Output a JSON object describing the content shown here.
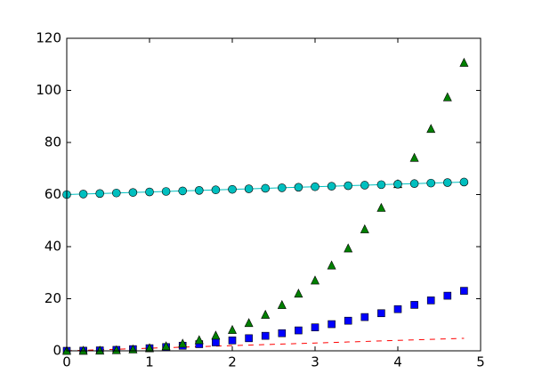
{
  "chart_data": {
    "type": "line",
    "x": [
      0,
      0.2,
      0.4,
      0.6,
      0.8,
      1,
      1.2,
      1.4,
      1.6,
      1.8,
      2,
      2.2,
      2.4,
      2.6,
      2.8,
      3,
      3.2,
      3.4,
      3.6,
      3.8,
      4,
      4.2,
      4.4,
      4.6,
      4.8
    ],
    "series": [
      {
        "color": "#ff0000",
        "linestyle": "--",
        "marker": null,
        "values": [
          0,
          0.2,
          0.4,
          0.6,
          0.8,
          1,
          1.2,
          1.4,
          1.6,
          1.8,
          2,
          2.2,
          2.4,
          2.6,
          2.8,
          3,
          3.2,
          3.4,
          3.6,
          3.8,
          4,
          4.2,
          4.4,
          4.6,
          4.8
        ]
      },
      {
        "color": "#0000ff",
        "linestyle": "none",
        "marker": "s",
        "values": [
          0,
          0.04,
          0.16,
          0.36,
          0.64,
          1,
          1.44,
          1.96,
          2.56,
          3.24,
          4,
          4.84,
          5.76,
          6.76,
          7.84,
          9,
          10.24,
          11.56,
          12.96,
          14.44,
          16,
          17.64,
          19.36,
          21.16,
          23.04
        ]
      },
      {
        "color": "#008000",
        "linestyle": "none",
        "marker": "^",
        "values": [
          0,
          0.008,
          0.064,
          0.216,
          0.512,
          1,
          1.728,
          2.744,
          4.096,
          5.832,
          8,
          10.648,
          13.824,
          17.576,
          21.952,
          27,
          32.768,
          39.304,
          46.656,
          54.872,
          64,
          74.088,
          85.184,
          97.336,
          110.592
        ]
      },
      {
        "color": "#00bfbf",
        "linestyle": "-",
        "marker": "o",
        "values": [
          60,
          60.2,
          60.4,
          60.6,
          60.8,
          61,
          61.2,
          61.4,
          61.6,
          61.8,
          62,
          62.2,
          62.4,
          62.6,
          62.8,
          63,
          63.2,
          63.4,
          63.6,
          63.8,
          64,
          64.2,
          64.4,
          64.6,
          64.8
        ]
      }
    ],
    "xlim": [
      0,
      5
    ],
    "xticks": [
      0,
      1,
      2,
      3,
      4,
      5
    ],
    "ylim": [
      0,
      120
    ],
    "yticks": [
      0,
      20,
      40,
      60,
      80,
      100,
      120
    ],
    "grid": false
  }
}
